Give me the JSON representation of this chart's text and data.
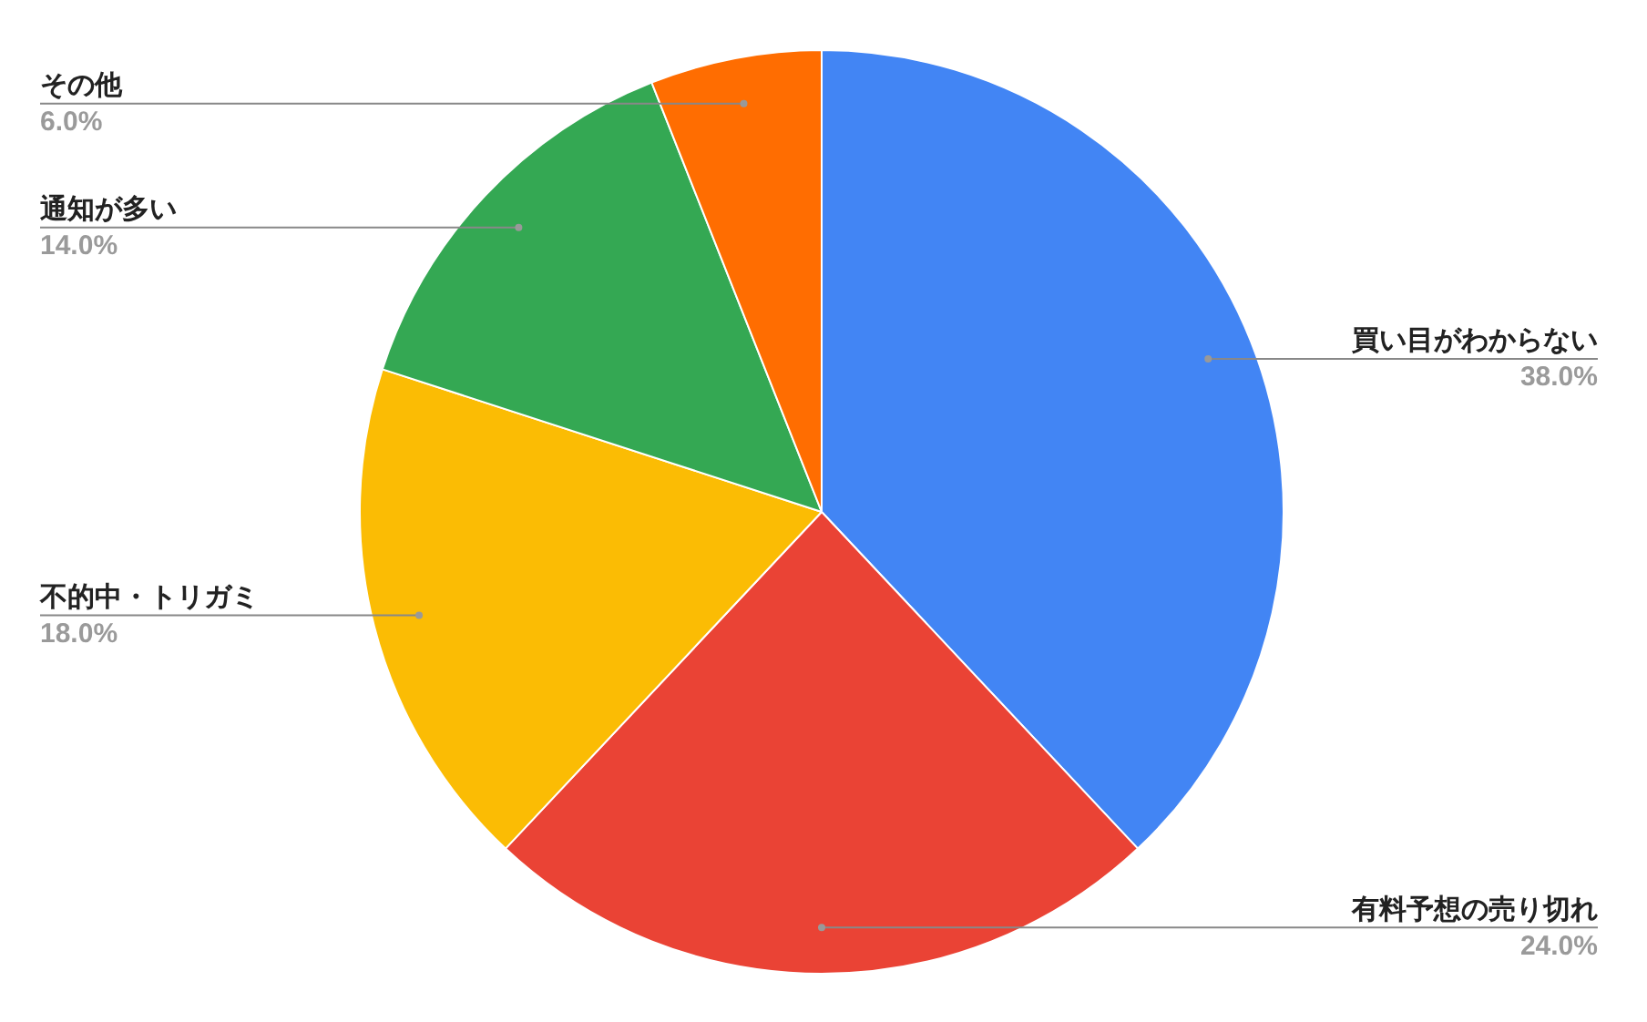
{
  "chart_data": {
    "type": "pie",
    "categories": [
      "買い目がわからない",
      "有料予想の売り切れ",
      "不的中・トリガミ",
      "通知が多い",
      "その他"
    ],
    "values": [
      38,
      24,
      18,
      14,
      6
    ],
    "colors": [
      "#4285f4",
      "#ea4335",
      "#fbbc04",
      "#34a853",
      "#ff6d01"
    ],
    "value_labels": [
      "38.0%",
      "24.0%",
      "18.0%",
      "14.0%",
      "6.0%"
    ]
  }
}
